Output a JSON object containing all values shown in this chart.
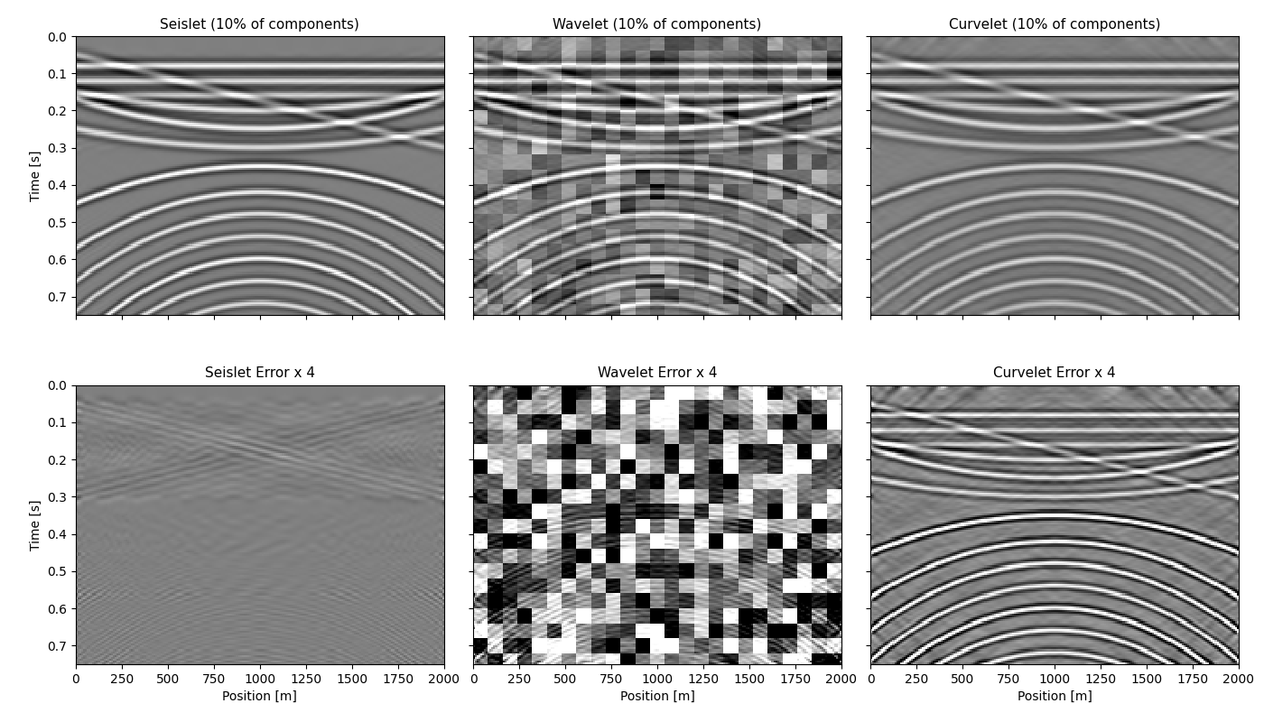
{
  "titles": [
    "Seislet (10% of components)",
    "Wavelet (10% of components)",
    "Curvelet (10% of components)",
    "Seislet Error x 4",
    "Wavelet Error x 4",
    "Curvelet Error x 4"
  ],
  "xlabel": "Position [m]",
  "ylabel": "Time [s]",
  "x_range": [
    0,
    2000
  ],
  "t_range": [
    0.0,
    0.75
  ],
  "nx": 200,
  "nt": 150,
  "figsize": [
    14.0,
    8.0
  ],
  "dpi": 100
}
